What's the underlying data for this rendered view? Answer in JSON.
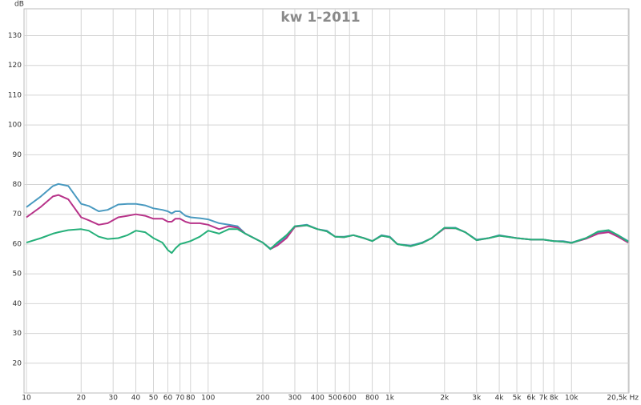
{
  "chart_data": {
    "type": "line",
    "title": "kw 1-2011",
    "y_label": "dB",
    "xscale": "log",
    "grid": true,
    "xlim": [
      10,
      20500
    ],
    "ylim": [
      10,
      139
    ],
    "xticks": [
      10,
      20,
      30,
      40,
      50,
      60,
      70,
      80,
      100,
      200,
      300,
      400,
      500,
      600,
      800,
      {
        "value": 1000,
        "label": "1k"
      },
      {
        "value": 2000,
        "label": "2k"
      },
      {
        "value": 3000,
        "label": "3k"
      },
      {
        "value": 4000,
        "label": "4k"
      },
      {
        "value": 5000,
        "label": "5k"
      },
      {
        "value": 6000,
        "label": "6k"
      },
      {
        "value": 7000,
        "label": "7k"
      },
      {
        "value": 8000,
        "label": "8k"
      },
      {
        "value": 10000,
        "label": "10k"
      },
      {
        "value": 20500,
        "label": "20,5k Hz"
      }
    ],
    "yticks": [
      20,
      30,
      40,
      50,
      60,
      70,
      80,
      90,
      100,
      110,
      120,
      130
    ],
    "x": [
      10,
      12,
      14,
      15,
      17,
      20,
      22,
      25,
      28,
      32,
      36,
      40,
      45,
      50,
      56,
      60,
      63,
      66,
      70,
      75,
      80,
      90,
      100,
      115,
      130,
      145,
      160,
      200,
      220,
      240,
      270,
      300,
      350,
      400,
      450,
      500,
      560,
      630,
      720,
      800,
      900,
      1000,
      1100,
      1300,
      1500,
      1700,
      2000,
      2300,
      2600,
      3000,
      3500,
      4000,
      5000,
      6000,
      7000,
      8000,
      9000,
      10000,
      12000,
      14000,
      16000,
      18000,
      20500
    ],
    "series": [
      {
        "color": "#4a9ac0",
        "values": [
          72.4,
          76,
          79.5,
          80.2,
          79.5,
          73.5,
          72.8,
          71,
          71.5,
          73.3,
          73.5,
          73.5,
          73,
          72,
          71.5,
          71,
          70.3,
          71,
          71,
          69.5,
          69,
          68.7,
          68.3,
          67,
          66.5,
          66,
          63.5,
          60.5,
          58.5,
          60,
          62.5,
          66,
          66.5,
          65,
          64.5,
          62.5,
          62.5,
          63,
          62,
          61,
          63,
          62.5,
          60,
          59.5,
          60.5,
          62,
          65.5,
          65.5,
          64,
          61.5,
          62,
          63,
          62,
          61.5,
          61.5,
          61,
          61,
          60.5,
          62,
          64,
          64.5,
          63,
          61
        ]
      },
      {
        "color": "#b8348a",
        "values": [
          69,
          72.5,
          76,
          76.5,
          75,
          69,
          68,
          66.5,
          67,
          69,
          69.5,
          70,
          69.5,
          68.5,
          68.5,
          67.5,
          67.5,
          68.5,
          68.5,
          67.5,
          67,
          67,
          66.5,
          65,
          66,
          65.5,
          63.5,
          60.5,
          58.3,
          59.5,
          62,
          65.8,
          66.3,
          65,
          64.3,
          62.5,
          62.3,
          63,
          62,
          61,
          62.8,
          62.3,
          60,
          59.3,
          60.3,
          62,
          65.3,
          65.3,
          64,
          61.3,
          62,
          62.8,
          62,
          61.5,
          61.5,
          61,
          60.8,
          60.4,
          61.8,
          63.5,
          64,
          62.5,
          60.5
        ]
      },
      {
        "color": "#26b07a",
        "values": [
          60.5,
          62,
          63.5,
          64,
          64.7,
          65,
          64.5,
          62.5,
          61.7,
          62,
          63,
          64.5,
          64,
          62,
          60.5,
          58,
          57,
          58.5,
          60,
          60.5,
          61,
          62.5,
          64.5,
          63.5,
          65,
          65,
          63.5,
          60.5,
          58.3,
          60.5,
          63,
          66,
          66.3,
          65,
          64.3,
          62.5,
          62.3,
          63,
          62,
          61,
          62.8,
          62.3,
          60,
          59.3,
          60.3,
          62,
          65.5,
          65.3,
          64,
          61.3,
          62,
          62.8,
          62,
          61.5,
          61.5,
          61,
          60.8,
          60.4,
          62,
          64.2,
          64.7,
          63,
          60.8
        ]
      }
    ]
  }
}
